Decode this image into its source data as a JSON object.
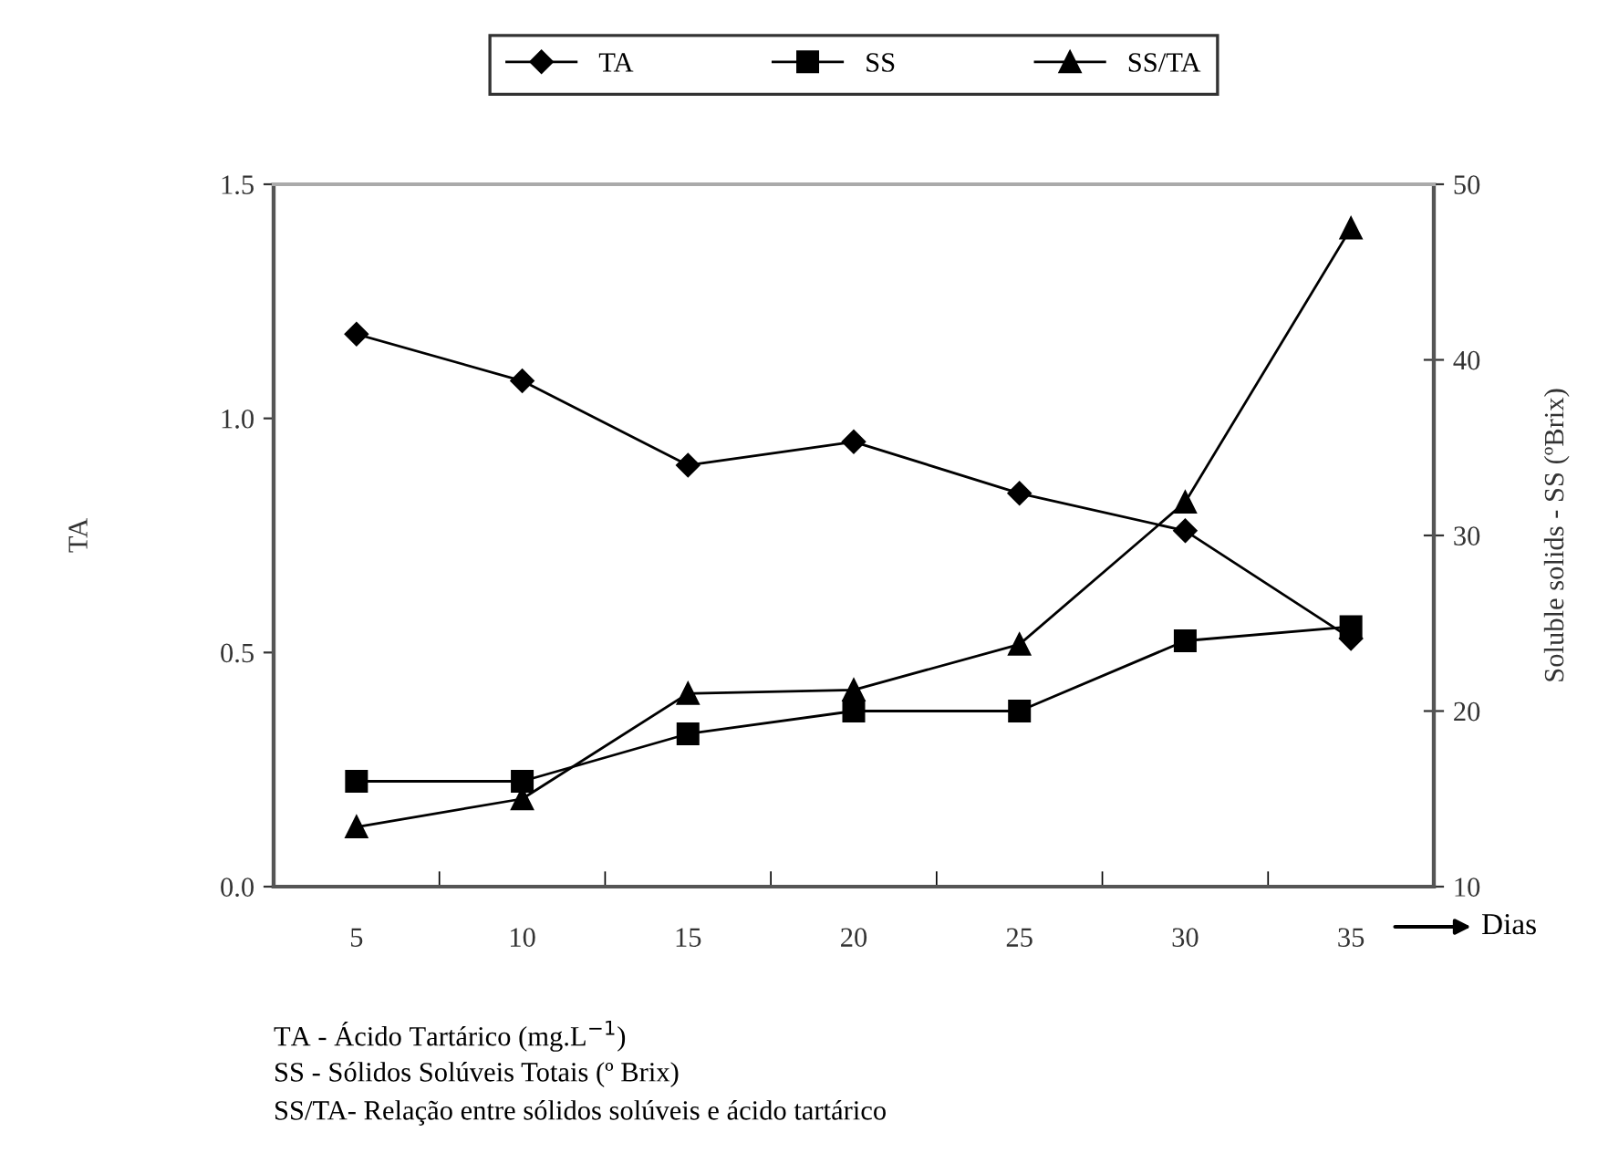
{
  "chart_data": {
    "type": "line",
    "categories": [
      "5",
      "10",
      "15",
      "20",
      "25",
      "30",
      "35"
    ],
    "ylabel": "TA",
    "y2label": "Soluble solids - SS (ºBrix)",
    "ylim": [
      0,
      1.5
    ],
    "yticks": [
      {
        "value": 0,
        "label": "0.0"
      },
      {
        "value": 0.5,
        "label": "0.5"
      },
      {
        "value": 1.0,
        "label": "1.0"
      },
      {
        "value": 1.5,
        "label": "1.5"
      }
    ],
    "y2lim": [
      10,
      50
    ],
    "y2ticks": [
      10,
      20,
      30,
      40,
      50
    ],
    "series": [
      {
        "name": "TA",
        "color": "#000000",
        "marker": "diamond",
        "values": [
          1.18,
          1.08,
          0.9,
          0.95,
          0.84,
          0.76,
          0.53
        ]
      },
      {
        "name": "SS",
        "color": "#000000",
        "marker": "square",
        "axis": "y2",
        "values": [
          16,
          16,
          18.7,
          20,
          20,
          24,
          24.8
        ]
      },
      {
        "name": "SS/TA",
        "color": "#000000",
        "marker": "triangle",
        "axis": "y2",
        "values": [
          13.4,
          15,
          21,
          21.2,
          23.8,
          31.9,
          47.5
        ]
      }
    ],
    "legend": "top",
    "grid": false,
    "line_style": "solid",
    "annotations": [
      "Dias",
      "TA - Ácido Tartárico (mg.L$^{−1}$)",
      "SS - Sólidos Solúveis Totais (º Brix)",
      "SS/TA- Relação entre sólidos solúveis e ácido tartárico"
    ]
  }
}
